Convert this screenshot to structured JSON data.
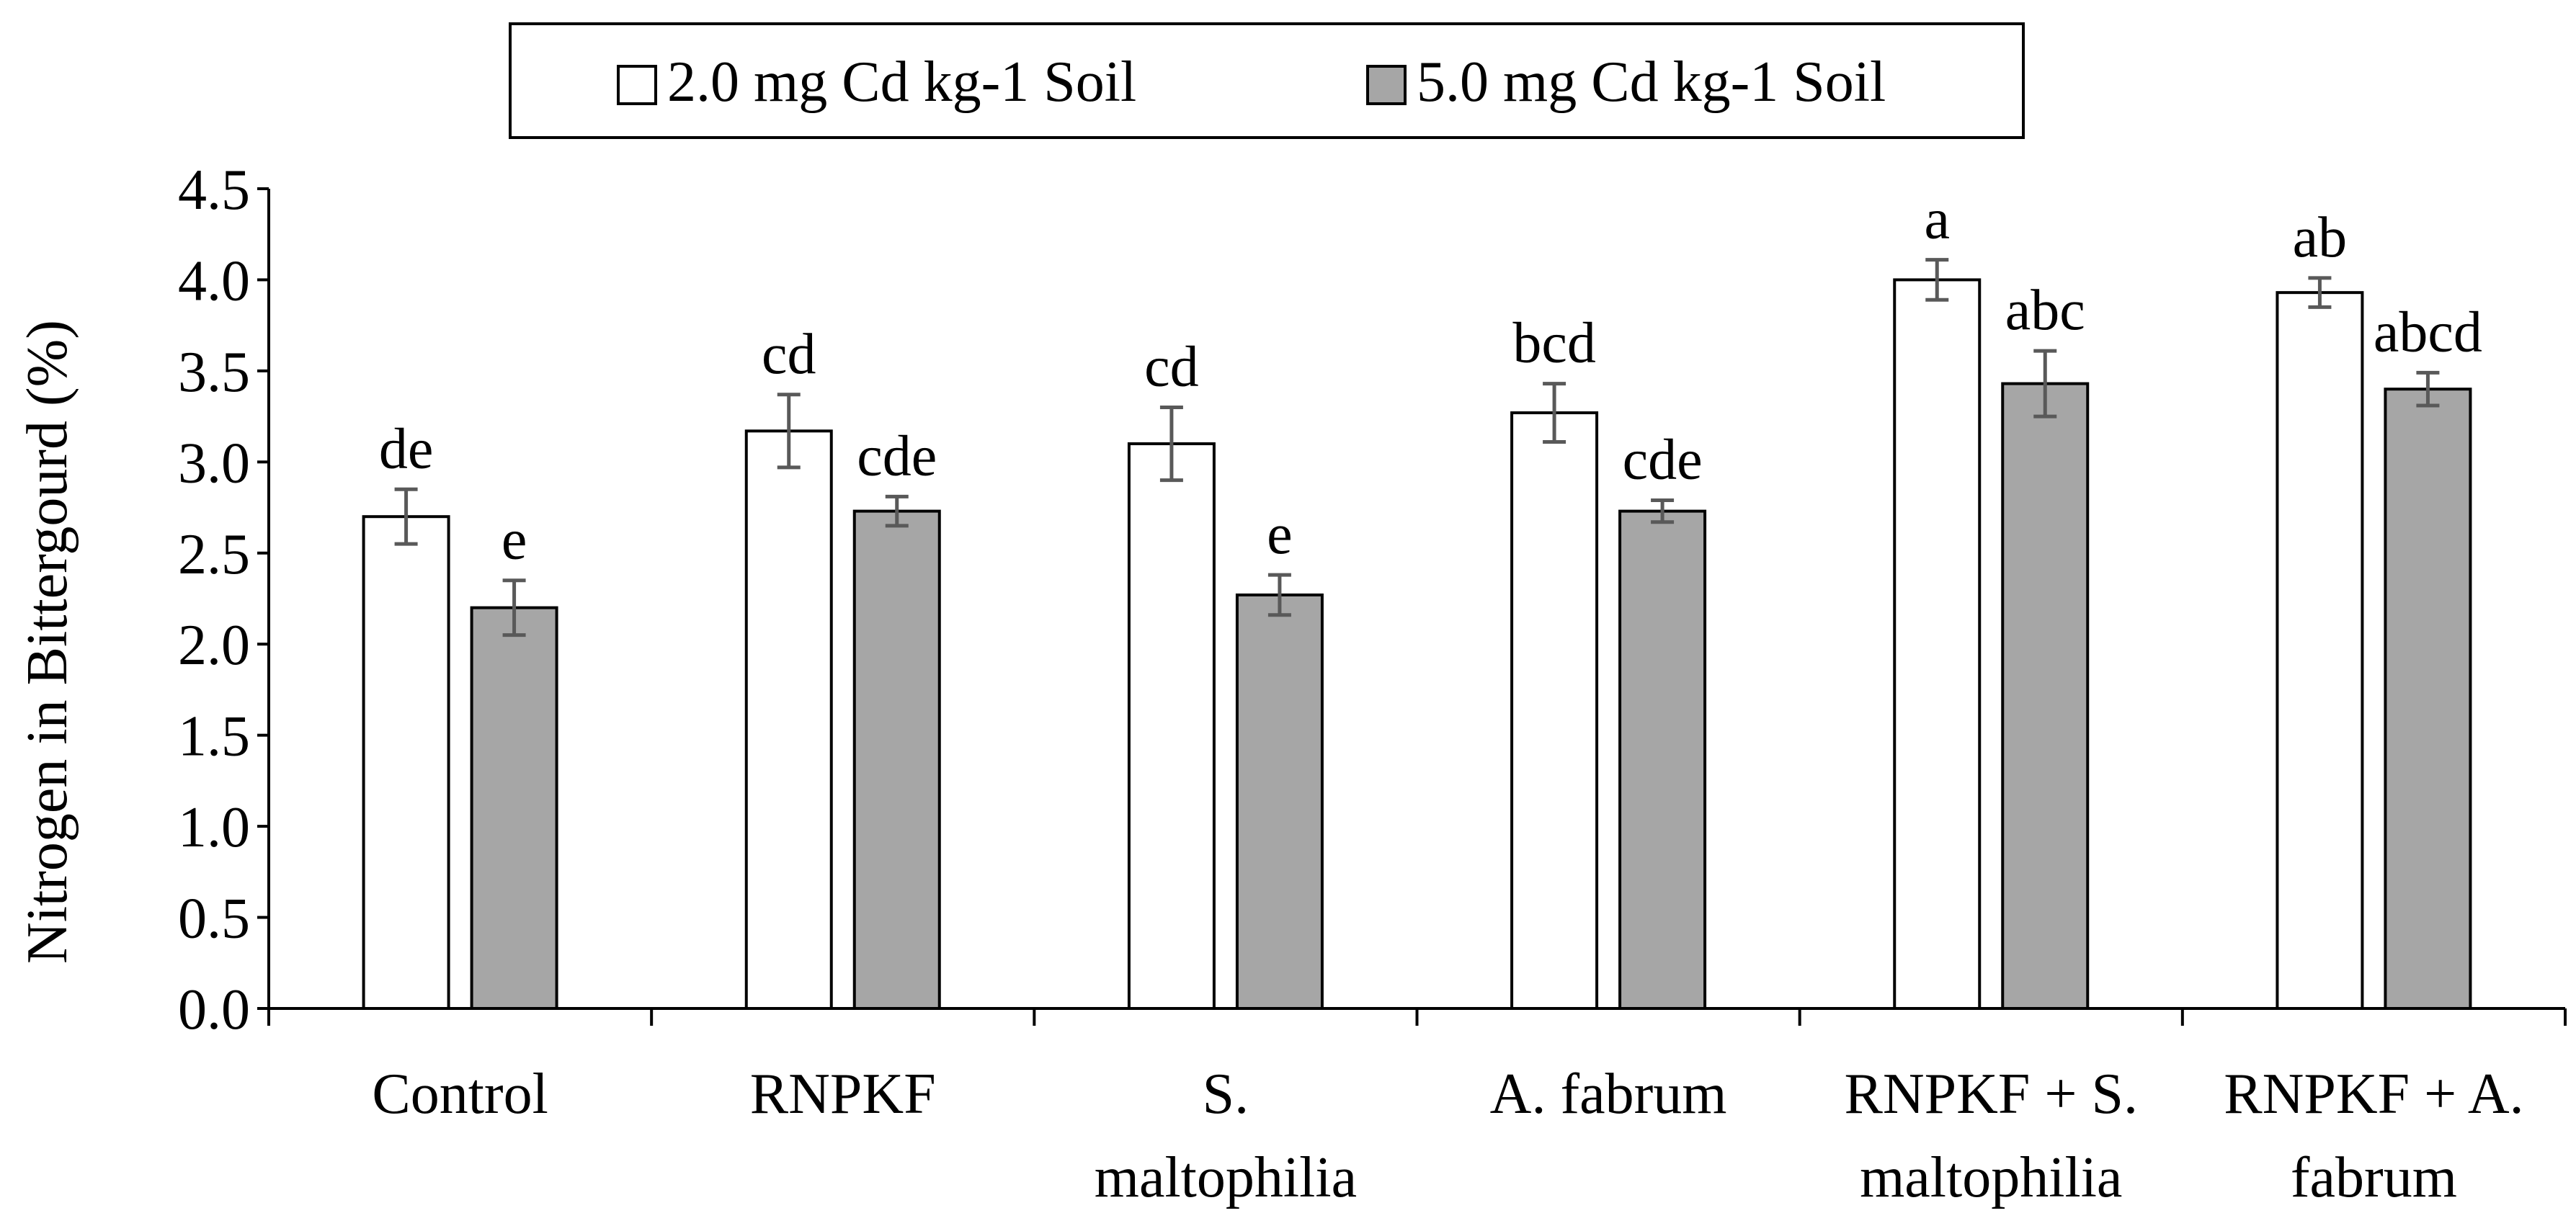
{
  "chart_data": {
    "type": "bar",
    "title": "",
    "xlabel": "",
    "ylabel": "Nitrogen in Bittergourd (%)",
    "ylim": [
      0,
      4.5
    ],
    "yticks": [
      "0.0",
      "0.5",
      "1.0",
      "1.5",
      "2.0",
      "2.5",
      "3.0",
      "3.5",
      "4.0",
      "4.5"
    ],
    "categories": [
      [
        "Control"
      ],
      [
        "RNPKF"
      ],
      [
        "S.",
        "maltophilia"
      ],
      [
        "A. fabrum"
      ],
      [
        "RNPKF + S.",
        "maltophilia"
      ],
      [
        "RNPKF + A.",
        "fabrum"
      ]
    ],
    "series": [
      {
        "name": "2.0 mg Cd kg-1 Soil",
        "color": "#ffffff",
        "values": [
          2.7,
          3.17,
          3.1,
          3.27,
          4.0,
          3.93
        ],
        "errors": [
          0.15,
          0.2,
          0.2,
          0.16,
          0.11,
          0.08
        ],
        "labels": [
          "de",
          "cd",
          "cd",
          "bcd",
          "a",
          "ab"
        ]
      },
      {
        "name": "5.0 mg Cd kg-1 Soil",
        "color": "#a6a6a6",
        "values": [
          2.2,
          2.73,
          2.27,
          2.73,
          3.43,
          3.4
        ],
        "errors": [
          0.15,
          0.08,
          0.11,
          0.06,
          0.18,
          0.09
        ],
        "labels": [
          "e",
          "cde",
          "e",
          "cde",
          "abc",
          "abcd"
        ]
      }
    ],
    "legend": {
      "position": "top-center"
    }
  }
}
